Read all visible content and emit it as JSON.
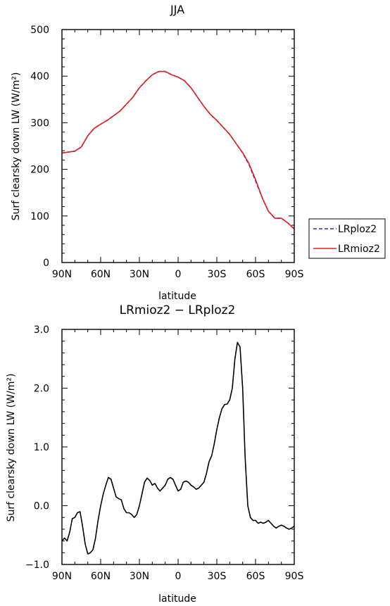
{
  "chart_data": [
    {
      "type": "line",
      "title": "JJA",
      "xlabel": "latitude",
      "ylabel": "Surf clearsky down LW (W/m²)",
      "xlim": [
        90,
        -90
      ],
      "ylim": [
        0,
        500
      ],
      "x_ticks": [
        90,
        60,
        30,
        0,
        -30,
        -60,
        -90
      ],
      "x_tick_labels": [
        "90N",
        "60N",
        "30N",
        "0",
        "30S",
        "60S",
        "90S"
      ],
      "y_ticks": [
        0,
        100,
        200,
        300,
        400,
        500
      ],
      "y_tick_labels": [
        "0",
        "100",
        "200",
        "300",
        "400",
        "500"
      ],
      "legend": "right-outside",
      "series": [
        {
          "name": "LRploz2",
          "color": "#1f2ecc",
          "dash": "dashed",
          "x": [
            90,
            85,
            80,
            75,
            70,
            65,
            60,
            55,
            50,
            45,
            40,
            35,
            30,
            25,
            20,
            15,
            10,
            5,
            0,
            -5,
            -10,
            -15,
            -20,
            -25,
            -30,
            -35,
            -40,
            -45,
            -50,
            -55,
            -60,
            -65,
            -70,
            -75,
            -80,
            -85,
            -90
          ],
          "values": [
            235,
            237,
            239,
            248,
            272,
            288,
            297,
            305,
            315,
            325,
            340,
            355,
            375,
            390,
            403,
            410,
            410,
            403,
            398,
            390,
            375,
            355,
            335,
            318,
            305,
            290,
            275,
            255,
            235,
            210,
            175,
            140,
            110,
            95,
            95,
            85,
            72
          ]
        },
        {
          "name": "LRmioz2",
          "color": "#e02020",
          "dash": "solid",
          "x": [
            90,
            85,
            80,
            75,
            70,
            65,
            60,
            55,
            50,
            45,
            40,
            35,
            30,
            25,
            20,
            15,
            10,
            5,
            0,
            -5,
            -10,
            -15,
            -20,
            -25,
            -30,
            -35,
            -40,
            -45,
            -50,
            -55,
            -60,
            -65,
            -70,
            -75,
            -80,
            -85,
            -90
          ],
          "values": [
            235,
            237,
            239,
            248,
            272,
            288,
            297,
            305,
            315,
            325,
            340,
            355,
            375,
            390,
            403,
            410,
            410,
            403,
            398,
            390,
            375,
            355,
            335,
            318,
            305,
            290,
            275,
            255,
            236,
            212,
            178,
            140,
            110,
            95,
            95,
            85,
            72
          ]
        }
      ]
    },
    {
      "type": "line",
      "title": "LRmioz2 − LRploz2",
      "xlabel": "latitude",
      "ylabel": "Surf clearsky down LW (W/m²)",
      "xlim": [
        90,
        -90
      ],
      "ylim": [
        -1.0,
        3.0
      ],
      "x_ticks": [
        90,
        60,
        30,
        0,
        -30,
        -60,
        -90
      ],
      "x_tick_labels": [
        "90N",
        "60N",
        "30N",
        "0",
        "30S",
        "60S",
        "90S"
      ],
      "y_ticks": [
        -1.0,
        0.0,
        1.0,
        2.0,
        3.0
      ],
      "y_tick_labels": [
        "−1.0",
        "0.0",
        "1.0",
        "2.0",
        "3.0"
      ],
      "series": [
        {
          "color": "#000000",
          "dash": "solid",
          "x": [
            90,
            88,
            86,
            84,
            82,
            80,
            78,
            76,
            74,
            72,
            70,
            68,
            66,
            64,
            62,
            60,
            58,
            56,
            54,
            52,
            50,
            48,
            46,
            44,
            42,
            40,
            38,
            36,
            34,
            32,
            30,
            28,
            26,
            24,
            22,
            20,
            18,
            16,
            14,
            12,
            10,
            8,
            6,
            4,
            2,
            0,
            -2,
            -4,
            -6,
            -8,
            -10,
            -12,
            -14,
            -16,
            -18,
            -20,
            -22,
            -24,
            -26,
            -28,
            -30,
            -32,
            -34,
            -36,
            -38,
            -40,
            -42,
            -44,
            -46,
            -48,
            -50,
            -52,
            -54,
            -56,
            -58,
            -60,
            -62,
            -64,
            -66,
            -68,
            -70,
            -72,
            -74,
            -76,
            -78,
            -80,
            -82,
            -84,
            -86,
            -88,
            -90
          ],
          "values": [
            -0.6,
            -0.55,
            -0.6,
            -0.45,
            -0.22,
            -0.2,
            -0.12,
            -0.1,
            -0.35,
            -0.65,
            -0.82,
            -0.8,
            -0.75,
            -0.55,
            -0.25,
            0.0,
            0.2,
            0.35,
            0.48,
            0.45,
            0.3,
            0.15,
            0.12,
            0.1,
            -0.05,
            -0.12,
            -0.12,
            -0.15,
            -0.2,
            -0.15,
            0.0,
            0.2,
            0.4,
            0.47,
            0.43,
            0.35,
            0.38,
            0.3,
            0.25,
            0.3,
            0.35,
            0.45,
            0.48,
            0.45,
            0.35,
            0.25,
            0.28,
            0.4,
            0.42,
            0.4,
            0.35,
            0.32,
            0.28,
            0.3,
            0.35,
            0.4,
            0.55,
            0.75,
            0.85,
            1.05,
            1.3,
            1.5,
            1.65,
            1.72,
            1.73,
            1.8,
            2.0,
            2.5,
            2.78,
            2.7,
            2.0,
            0.8,
            0.0,
            -0.2,
            -0.25,
            -0.25,
            -0.3,
            -0.28,
            -0.3,
            -0.28,
            -0.25,
            -0.3,
            -0.35,
            -0.38,
            -0.35,
            -0.33,
            -0.35,
            -0.38,
            -0.4,
            -0.38,
            -0.35
          ]
        }
      ]
    }
  ]
}
